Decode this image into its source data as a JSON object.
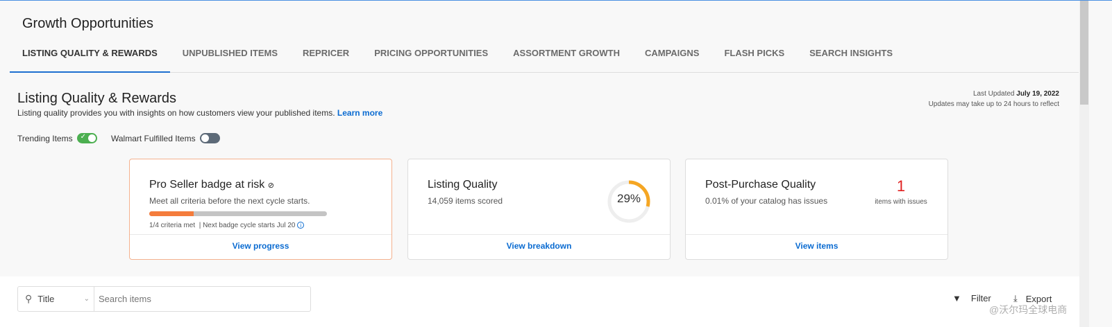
{
  "header": {
    "title": "Growth Opportunities",
    "tabs": [
      {
        "label": "LISTING QUALITY & REWARDS",
        "active": true
      },
      {
        "label": "UNPUBLISHED ITEMS"
      },
      {
        "label": "REPRICER"
      },
      {
        "label": "PRICING OPPORTUNITIES"
      },
      {
        "label": "ASSORTMENT GROWTH"
      },
      {
        "label": "CAMPAIGNS"
      },
      {
        "label": "FLASH PICKS"
      },
      {
        "label": "SEARCH INSIGHTS"
      }
    ]
  },
  "section": {
    "title": "Listing Quality & Rewards",
    "description": "Listing quality provides you with insights on how customers view your published items.",
    "learn_more": "Learn more",
    "last_updated_label": "Last Updated",
    "last_updated_date": "July 19, 2022",
    "update_note": "Updates may take up to 24 hours to reflect"
  },
  "toggles": [
    {
      "label": "Trending Items",
      "on": true
    },
    {
      "label": "Walmart Fulfilled Items",
      "on": false
    }
  ],
  "cards": {
    "pro_seller": {
      "title": "Pro Seller badge at risk",
      "subtitle": "Meet all criteria before the next cycle starts.",
      "progress": 0.25,
      "criteria": "1/4 criteria met",
      "cycle": "| Next badge cycle starts Jul 20",
      "link": "View progress"
    },
    "listing_quality": {
      "title": "Listing Quality",
      "subtitle": "14,059 items scored",
      "score_label": "29%",
      "score": 29,
      "link": "View breakdown"
    },
    "post_purchase": {
      "title": "Post-Purchase Quality",
      "subtitle": "0.01% of your catalog has issues",
      "count": "1",
      "count_label": "items with issues",
      "link": "View items"
    }
  },
  "toolbar": {
    "search_field": "Title",
    "search_placeholder": "Search items",
    "filter": "Filter",
    "export": "Export"
  },
  "watermark": "@沃尔玛全球电商",
  "colors": {
    "accent": "#0a6bd1",
    "progress": "#f47c3c",
    "ring": "#f5a623",
    "toggle_on": "#4caf50",
    "alert": "#e02020"
  }
}
